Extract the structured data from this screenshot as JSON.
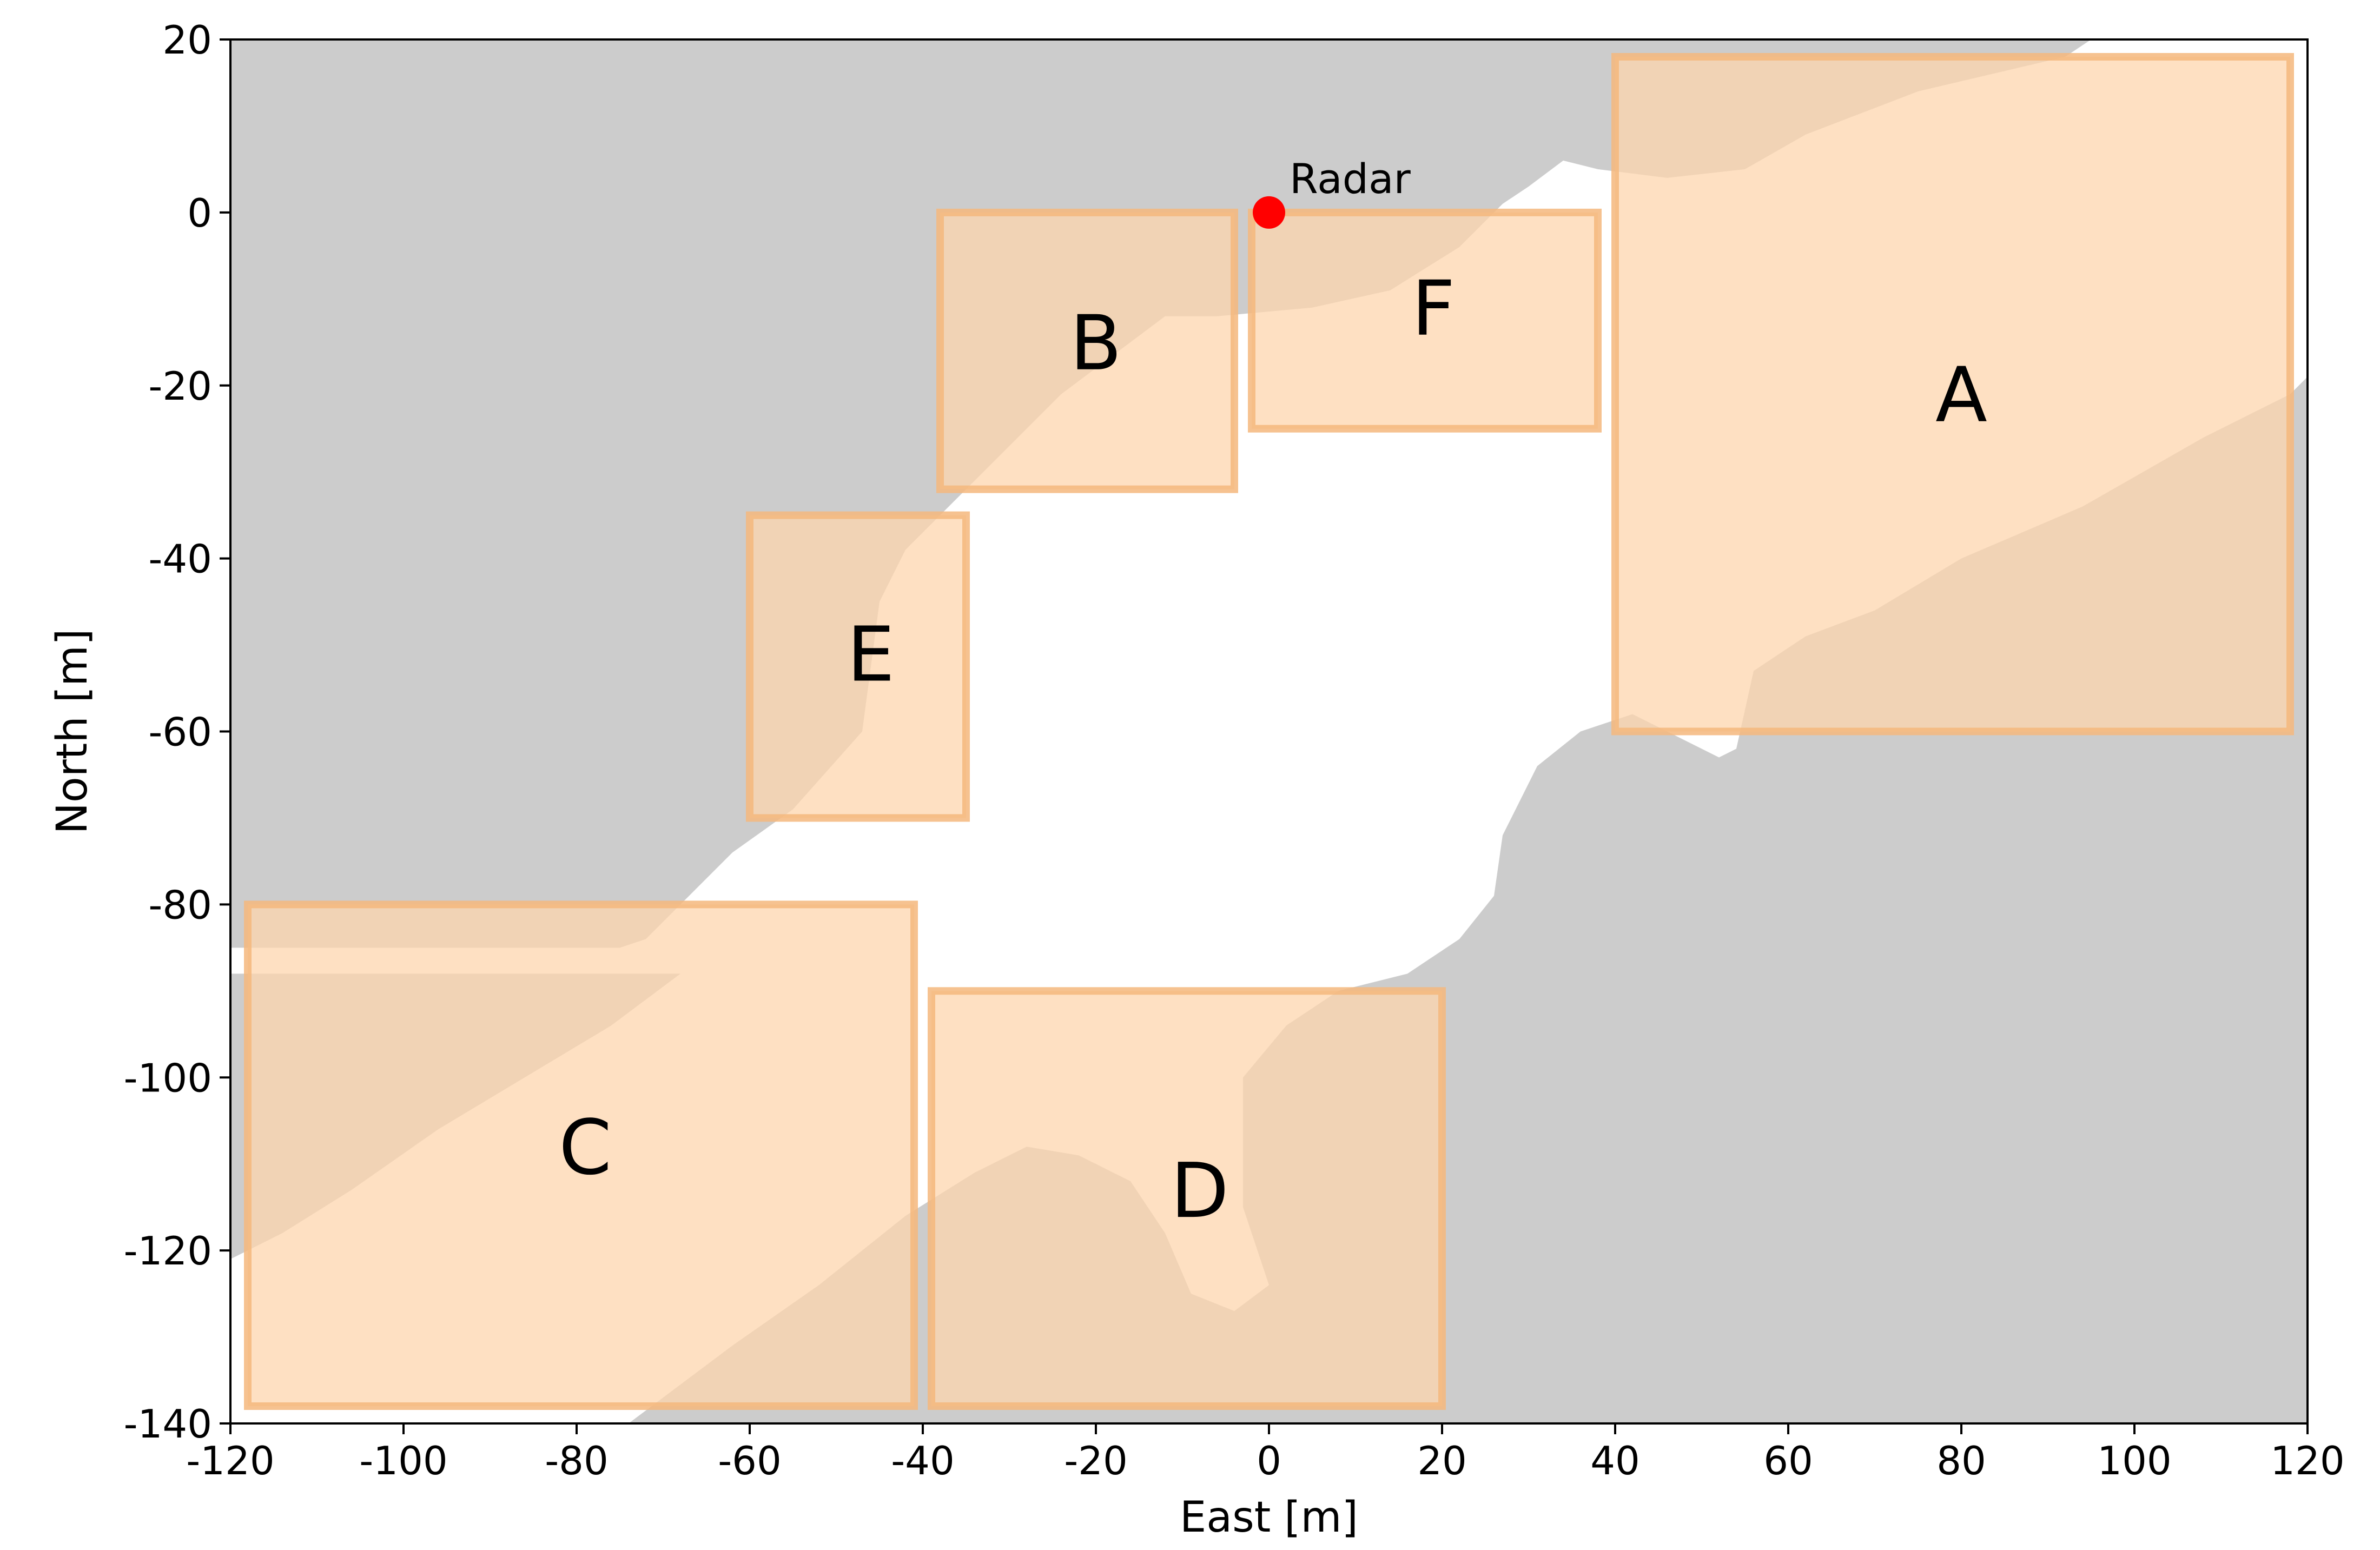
{
  "chart_data": {
    "type": "map",
    "xlabel": "East [m]",
    "ylabel": "North [m]",
    "xlim": [
      -120,
      120
    ],
    "ylim": [
      -140,
      20
    ],
    "xticks": [
      -120,
      -100,
      -80,
      -60,
      -40,
      -20,
      0,
      20,
      40,
      60,
      80,
      100,
      120
    ],
    "yticks": [
      20,
      0,
      -20,
      -40,
      -60,
      -80,
      -100,
      -120,
      -140
    ],
    "grid": false,
    "colors": {
      "shadow": "#cccccc",
      "region_fill": "#fdd5ad",
      "region_edge": "#f5b77c",
      "radar": "#ff0000"
    },
    "radar": {
      "label": "Radar",
      "x": 0,
      "y": 0
    },
    "regions": [
      {
        "label": "A",
        "x0": 40,
        "x1": 118,
        "y0": -60,
        "y1": 18,
        "label_x": 80,
        "label_y": -21
      },
      {
        "label": "B",
        "x0": -38,
        "x1": -4,
        "y0": -32,
        "y1": 0,
        "label_x": -20,
        "label_y": -15
      },
      {
        "label": "C",
        "x0": -118,
        "x1": -41,
        "y0": -138,
        "y1": -80,
        "label_x": -79,
        "label_y": -108
      },
      {
        "label": "D",
        "x0": -39,
        "x1": 20,
        "y0": -138,
        "y1": -90,
        "label_x": -8,
        "label_y": -113
      },
      {
        "label": "E",
        "x0": -60,
        "x1": -35,
        "y0": -70,
        "y1": -35,
        "label_x": -46,
        "label_y": -51
      },
      {
        "label": "F",
        "x0": -2,
        "x1": 38,
        "y0": -25,
        "y1": 0,
        "label_x": 19,
        "label_y": -11
      }
    ],
    "shadow_region": [
      [
        -120,
        20
      ],
      [
        95,
        20
      ],
      [
        92,
        18
      ],
      [
        75,
        14
      ],
      [
        62,
        9
      ],
      [
        55,
        5
      ],
      [
        46,
        4
      ],
      [
        38,
        5
      ],
      [
        34,
        6
      ],
      [
        30,
        3
      ],
      [
        27,
        1
      ],
      [
        22,
        -4
      ],
      [
        14,
        -9
      ],
      [
        5,
        -11
      ],
      [
        -6,
        -12
      ],
      [
        -12,
        -12
      ],
      [
        -16,
        -15
      ],
      [
        -24,
        -21
      ],
      [
        -30,
        -27
      ],
      [
        -36,
        -33
      ],
      [
        -42,
        -39
      ],
      [
        -45,
        -45
      ],
      [
        -47,
        -60
      ],
      [
        -55,
        -69
      ],
      [
        -62,
        -74
      ],
      [
        -68,
        -80
      ],
      [
        -72,
        -84
      ],
      [
        -75,
        -85
      ],
      [
        -120,
        -85
      ]
    ],
    "shadow_lower_left": [
      [
        -120,
        -121
      ],
      [
        -114,
        -118
      ],
      [
        -106,
        -113
      ],
      [
        -96,
        -106
      ],
      [
        -86,
        -100
      ],
      [
        -76,
        -94
      ],
      [
        -68,
        -88
      ],
      [
        -64,
        -84
      ],
      [
        -120,
        -84
      ]
    ],
    "shadow_bottom": [
      [
        -120,
        -140
      ],
      [
        -120,
        -121
      ],
      [
        -114,
        -118
      ],
      [
        -106,
        -113
      ],
      [
        -96,
        -106
      ],
      [
        -86,
        -100
      ],
      [
        -76,
        -94
      ],
      [
        -68,
        -88
      ],
      [
        -120,
        -88
      ],
      [
        -120,
        -140
      ]
    ],
    "shadow_lower_right": [
      [
        -74,
        -140
      ],
      [
        -62,
        -131
      ],
      [
        -52,
        -124
      ],
      [
        -42,
        -116
      ],
      [
        -34,
        -111
      ],
      [
        -28,
        -108
      ],
      [
        -22,
        -109
      ],
      [
        -16,
        -112
      ],
      [
        -12,
        -118
      ],
      [
        -9,
        -125
      ],
      [
        -4,
        -127
      ],
      [
        0,
        -124
      ],
      [
        -3,
        -115
      ],
      [
        -3,
        -100
      ],
      [
        2,
        -94
      ],
      [
        8,
        -90
      ],
      [
        16,
        -88
      ],
      [
        22,
        -84
      ],
      [
        26,
        -79
      ],
      [
        27,
        -72
      ],
      [
        31,
        -64
      ],
      [
        36,
        -60
      ],
      [
        42,
        -58
      ],
      [
        48,
        -61
      ],
      [
        52,
        -63
      ],
      [
        54,
        -62
      ],
      [
        56,
        -53
      ],
      [
        62,
        -49
      ],
      [
        70,
        -46
      ],
      [
        80,
        -40
      ],
      [
        94,
        -34
      ],
      [
        108,
        -26
      ],
      [
        118,
        -21
      ],
      [
        120,
        -19
      ],
      [
        120,
        -140
      ]
    ]
  }
}
